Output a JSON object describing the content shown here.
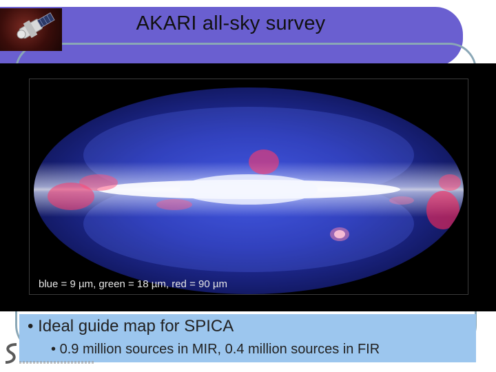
{
  "slide": {
    "title": "AKARI all-sky survey",
    "caption": "blue = 9 µm, green = 18 µm, red = 90 µm",
    "bullets": [
      {
        "text": "Ideal guide map for SPICA",
        "marker": "•"
      },
      {
        "text": "0.9 million sources in MIR, 0.4 million sources in FIR",
        "marker": "•"
      }
    ]
  },
  "colors": {
    "title_band": "#6a5fd0",
    "bullet_box": "#9cc6ee",
    "panel": "#000000",
    "ring": "#8aa7b6"
  },
  "icons": {
    "thumbnail": "akari-satellite-icon",
    "map": "all-sky-map-image",
    "logo": "institute-logo-icon"
  }
}
